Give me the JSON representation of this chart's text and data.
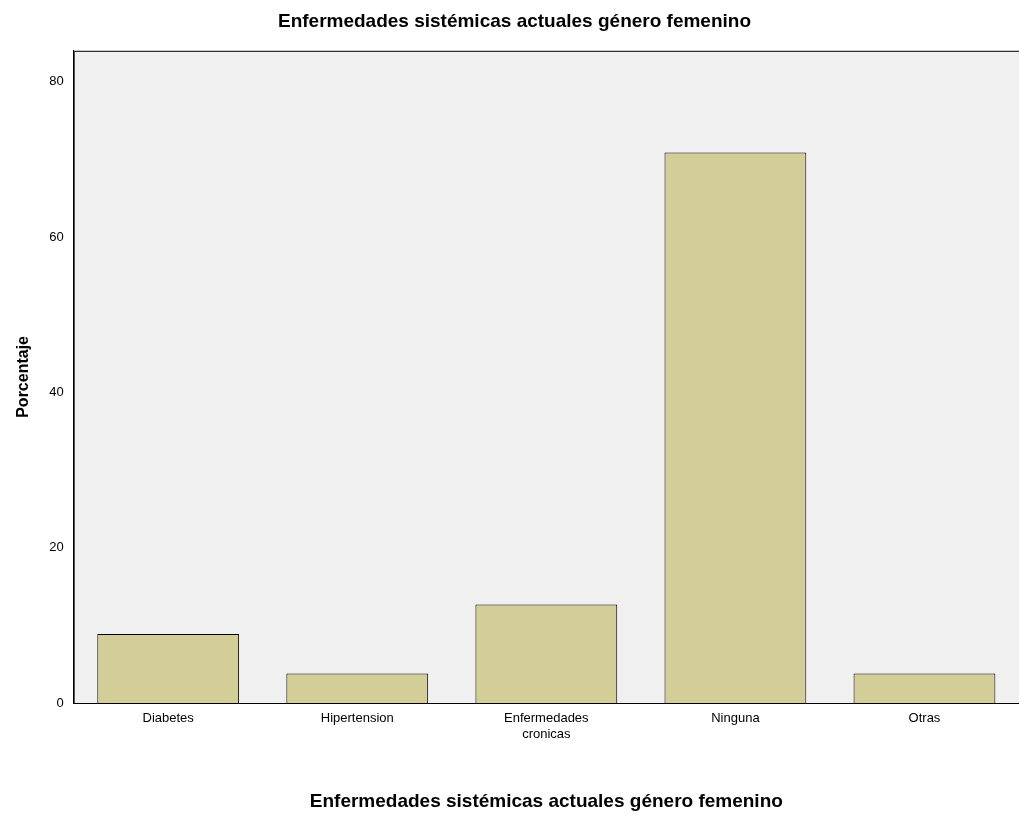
{
  "chart_data": {
    "type": "bar",
    "title": "Enfermedades sistémicas actuales género femenino",
    "xlabel": "Enfermedades sistémicas actuales género femenino",
    "ylabel": "Porcentaje",
    "categories": [
      "Diabetes",
      "Hipertension",
      "Enfermedades cronicas",
      "Ninguna",
      "Otras"
    ],
    "values": [
      8.9,
      3.8,
      12.7,
      70.9,
      3.8
    ],
    "color": "#d3ce97",
    "ylim": [
      0,
      84
    ],
    "yticks": [
      0,
      20,
      40,
      60,
      80
    ],
    "grid": false,
    "legend": false
  }
}
